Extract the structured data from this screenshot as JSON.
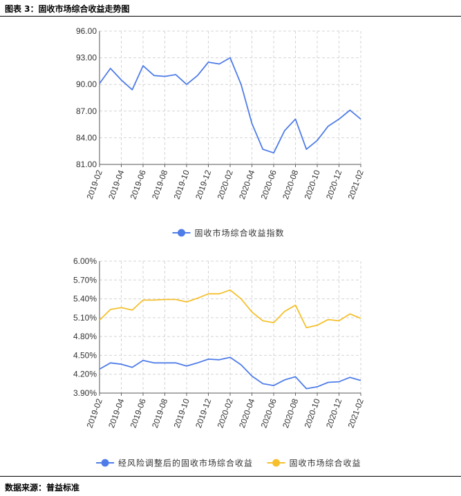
{
  "figure": {
    "title": "图表 3：固收市场综合收益走势图",
    "source": "数据来源：普益标准"
  },
  "chart_data": [
    {
      "type": "line",
      "title": "",
      "xlabel": "",
      "ylabel": "",
      "categories": [
        "2019-02",
        "2019-03",
        "2019-04",
        "2019-05",
        "2019-06",
        "2019-07",
        "2019-08",
        "2019-09",
        "2019-10",
        "2019-11",
        "2019-12",
        "2020-01",
        "2020-02",
        "2020-03",
        "2020-04",
        "2020-05",
        "2020-06",
        "2020-07",
        "2020-08",
        "2020-09",
        "2020-10",
        "2020-11",
        "2020-12",
        "2021-01",
        "2021-02"
      ],
      "x_tick_labels": [
        "2019-02",
        "2019-04",
        "2019-06",
        "2019-08",
        "2019-10",
        "2019-12",
        "2020-02",
        "2020-04",
        "2020-06",
        "2020-08",
        "2020-10",
        "2020-12",
        "2021-02"
      ],
      "y_tick_labels": [
        "96.00",
        "93.00",
        "90.00",
        "87.00",
        "84.00",
        "81.00"
      ],
      "ylim": [
        81,
        96
      ],
      "grid": true,
      "legend_position": "bottom",
      "series": [
        {
          "name": "固收市场综合收益指数",
          "color": "#4e7ce8",
          "values": [
            90.1,
            91.8,
            90.5,
            89.4,
            92.1,
            91.0,
            90.9,
            91.1,
            90.0,
            91.0,
            92.5,
            92.3,
            93.0,
            90.0,
            85.6,
            82.7,
            82.3,
            84.8,
            86.1,
            82.7,
            83.7,
            85.3,
            86.1,
            87.1,
            86.1
          ]
        }
      ]
    },
    {
      "type": "line",
      "title": "",
      "xlabel": "",
      "ylabel": "",
      "categories": [
        "2019-02",
        "2019-03",
        "2019-04",
        "2019-05",
        "2019-06",
        "2019-07",
        "2019-08",
        "2019-09",
        "2019-10",
        "2019-11",
        "2019-12",
        "2020-01",
        "2020-02",
        "2020-03",
        "2020-04",
        "2020-05",
        "2020-06",
        "2020-07",
        "2020-08",
        "2020-09",
        "2020-10",
        "2020-11",
        "2020-12",
        "2021-01",
        "2021-02"
      ],
      "x_tick_labels": [
        "2019-02",
        "2019-04",
        "2019-06",
        "2019-08",
        "2019-10",
        "2019-12",
        "2020-02",
        "2020-04",
        "2020-06",
        "2020-08",
        "2020-10",
        "2020-12",
        "2021-02"
      ],
      "y_tick_labels": [
        "6.00%",
        "5.70%",
        "5.40%",
        "5.10%",
        "4.80%",
        "4.50%",
        "4.20%",
        "3.90%"
      ],
      "ylim": [
        3.9,
        6.0
      ],
      "grid": true,
      "legend_position": "bottom",
      "series": [
        {
          "name": "经风险调整后的固收市场综合收益",
          "color": "#4e7ce8",
          "values": [
            4.28,
            4.38,
            4.36,
            4.31,
            4.42,
            4.38,
            4.38,
            4.38,
            4.33,
            4.38,
            4.44,
            4.43,
            4.47,
            4.35,
            4.17,
            4.05,
            4.02,
            4.11,
            4.16,
            3.97,
            4.0,
            4.07,
            4.08,
            4.15,
            4.1
          ]
        },
        {
          "name": "固收市场综合收益",
          "color": "#f5c02c",
          "values": [
            5.06,
            5.23,
            5.26,
            5.22,
            5.38,
            5.38,
            5.39,
            5.39,
            5.35,
            5.41,
            5.48,
            5.48,
            5.54,
            5.4,
            5.19,
            5.05,
            5.02,
            5.2,
            5.3,
            4.94,
            4.98,
            5.07,
            5.05,
            5.16,
            5.09
          ]
        }
      ]
    }
  ]
}
